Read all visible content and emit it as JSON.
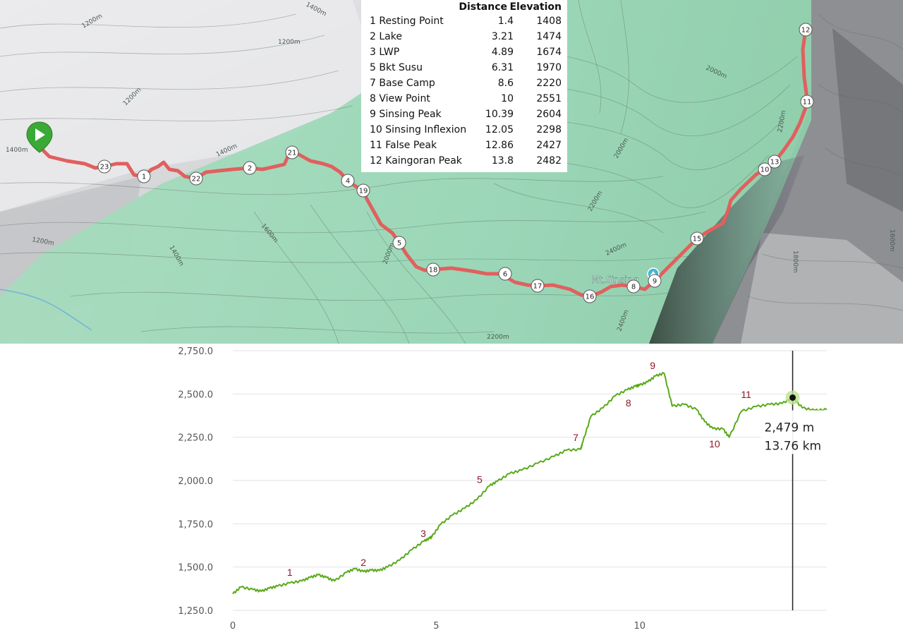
{
  "waypoint_table": {
    "headers": {
      "distance": "Distance",
      "elevation": "Elevation"
    },
    "rows": [
      {
        "num": "1",
        "name": "Resting Point",
        "distance": "1.4",
        "elevation": "1408"
      },
      {
        "num": "2",
        "name": "Lake",
        "distance": "3.21",
        "elevation": "1474"
      },
      {
        "num": "3",
        "name": "LWP",
        "distance": "4.89",
        "elevation": "1674"
      },
      {
        "num": "5",
        "name": "Bkt Susu",
        "distance": "6.31",
        "elevation": "1970"
      },
      {
        "num": "7",
        "name": "Base Camp",
        "distance": "8.6",
        "elevation": "2220"
      },
      {
        "num": "8",
        "name": "View Point",
        "distance": "10",
        "elevation": "2551"
      },
      {
        "num": "9",
        "name": "Sinsing Peak",
        "distance": "10.39",
        "elevation": "2604"
      },
      {
        "num": "10",
        "name": "Sinsing Inflexion",
        "distance": "12.05",
        "elevation": "2298"
      },
      {
        "num": "11",
        "name": "False Peak",
        "distance": "12.86",
        "elevation": "2427"
      },
      {
        "num": "12",
        "name": "Kaingoran Peak",
        "distance": "13.8",
        "elevation": "2482"
      }
    ]
  },
  "map": {
    "peak_label": "Mt.Sinsing",
    "contour_labels": [
      "1400m",
      "1200m",
      "1200m",
      "1400m",
      "1200m",
      "1600m",
      "1400m",
      "1200m",
      "1400m",
      "2000m",
      "2000m",
      "2200m",
      "2400m",
      "2200m",
      "2400m",
      "2000m",
      "2200m",
      "1600m",
      "1800m"
    ],
    "markers": [
      "1",
      "2",
      "4",
      "5",
      "6",
      "8",
      "9",
      "10",
      "11",
      "12",
      "13",
      "15",
      "16",
      "17",
      "18",
      "19",
      "21",
      "22",
      "23"
    ],
    "colors": {
      "route": "#e0605e",
      "green_overlay": "#9fe0bf",
      "terrain": "#d7d7d7",
      "marker_fill": "#ffffff",
      "start_pin": "#3aa935"
    }
  },
  "chart_data": {
    "type": "line",
    "title": "",
    "xlabel": "",
    "ylabel": "",
    "x_ticks": [
      "0",
      "5",
      "10"
    ],
    "y_ticks": [
      "1,250.0",
      "1,500.0",
      "1,750.0",
      "2,000.0",
      "2,250.0",
      "2,500.0",
      "2,750.0"
    ],
    "xlim": [
      0,
      14.6
    ],
    "ylim": [
      1250,
      2750
    ],
    "series": [
      {
        "values_km": [
          0,
          0.2,
          0.5,
          0.7,
          0.9,
          1.1,
          1.4,
          1.7,
          1.9,
          2.1,
          2.3,
          2.5,
          2.8,
          3.0,
          3.21,
          3.4,
          3.6,
          3.8,
          4.1,
          4.4,
          4.7,
          4.85,
          4.89,
          5.1,
          5.4,
          5.7,
          6.0,
          6.31,
          6.5,
          6.8,
          7.1,
          7.5,
          7.9,
          8.2,
          8.55,
          8.6,
          8.8,
          9.1,
          9.4,
          9.7,
          9.9,
          10.0,
          10.2,
          10.39,
          10.6,
          10.8,
          11.1,
          11.4,
          11.6,
          11.8,
          12.05,
          12.2,
          12.5,
          12.86,
          13.2,
          13.5,
          13.76,
          14.0,
          14.3,
          14.6
        ],
        "values_m": [
          1345,
          1385,
          1370,
          1360,
          1378,
          1390,
          1408,
          1420,
          1440,
          1455,
          1440,
          1420,
          1470,
          1490,
          1474,
          1482,
          1480,
          1500,
          1540,
          1600,
          1650,
          1668,
          1674,
          1745,
          1800,
          1840,
          1890,
          1970,
          1995,
          2040,
          2060,
          2100,
          2140,
          2175,
          2180,
          2220,
          2370,
          2420,
          2490,
          2525,
          2545,
          2551,
          2570,
          2604,
          2620,
          2430,
          2440,
          2410,
          2340,
          2300,
          2298,
          2250,
          2400,
          2427,
          2440,
          2445,
          2479,
          2420,
          2405,
          2410
        ]
      }
    ],
    "markers": [
      {
        "label": "1",
        "x": 1.4,
        "y": 1408
      },
      {
        "label": "2",
        "x": 3.21,
        "y": 1474
      },
      {
        "label": "3",
        "x": 4.89,
        "y": 1674
      },
      {
        "label": "5",
        "x": 6.31,
        "y": 1970
      },
      {
        "label": "7",
        "x": 8.6,
        "y": 2220
      },
      {
        "label": "8",
        "x": 10.0,
        "y": 2551
      },
      {
        "label": "9",
        "x": 10.39,
        "y": 2604
      },
      {
        "label": "10",
        "x": 12.05,
        "y": 2298
      },
      {
        "label": "11",
        "x": 12.86,
        "y": 2427
      }
    ],
    "cursor": {
      "x": 13.76,
      "y": 2479,
      "elevation_text": "2,479 m",
      "distance_text": "13.76 km"
    },
    "grid": true,
    "colors": {
      "line": "#5aaa1c",
      "marker_label": "#8b1a2a",
      "axis_text": "#555555",
      "grid": "#e2e2e2"
    }
  }
}
